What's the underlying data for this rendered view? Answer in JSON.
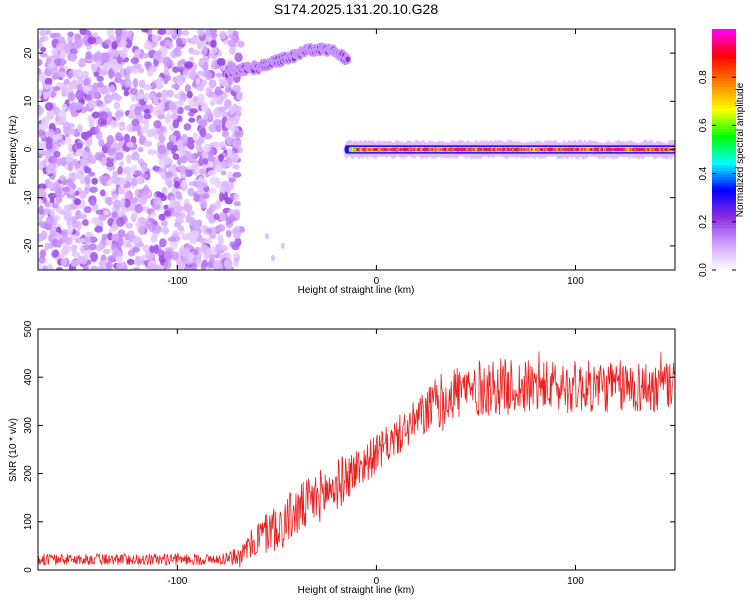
{
  "chart_data": [
    {
      "type": "heatmap",
      "title": "S174.2025.131.20.10.G28",
      "xlabel": "Height of straight line (km)",
      "ylabel": "Frequency (Hz)",
      "xlim": [
        -170,
        150
      ],
      "ylim": [
        -25,
        25
      ],
      "xticks": [
        -100,
        0,
        100
      ],
      "yticks": [
        -20,
        -10,
        0,
        10,
        20
      ],
      "colorbar": {
        "label": "Normalized spectral amplitude",
        "ticks": [
          0.0,
          0.2,
          0.4,
          0.6,
          0.8
        ],
        "range": [
          0,
          1
        ],
        "colormap": [
          "#ffffff",
          "#d0a0ff",
          "#8a2be2",
          "#0000ff",
          "#00ffff",
          "#00ff00",
          "#ffff00",
          "#ff8000",
          "#ff0000",
          "#ff00ff"
        ]
      },
      "features": [
        {
          "name": "noise",
          "x": [
            -170,
            -70
          ],
          "y": [
            -25,
            25
          ],
          "amplitude": 0.15
        },
        {
          "name": "rising-track",
          "x": [
            -75,
            -60,
            -45,
            -30,
            -20,
            -14
          ],
          "y": [
            16,
            17,
            19,
            21,
            20.5,
            18
          ],
          "amplitude": 0.35
        },
        {
          "name": "zero-line",
          "x": [
            -15,
            150
          ],
          "y": [
            0,
            0
          ],
          "amplitude": 0.95
        }
      ]
    },
    {
      "type": "line",
      "xlabel": "Height of straight line (km)",
      "ylabel": "SNR (10 * v/v)",
      "xlim": [
        -170,
        150
      ],
      "ylim": [
        0,
        500
      ],
      "xticks": [
        -100,
        0,
        100
      ],
      "yticks": [
        0,
        100,
        200,
        300,
        400,
        500
      ],
      "color": "#e82020",
      "envelope": {
        "x": [
          -170,
          -80,
          -68,
          -60,
          -50,
          -40,
          -30,
          -20,
          -10,
          0,
          10,
          20,
          30,
          40,
          60,
          80,
          100,
          120,
          150
        ],
        "y": [
          22,
          22,
          30,
          65,
          90,
          120,
          150,
          175,
          210,
          240,
          275,
          310,
          345,
          370,
          380,
          380,
          380,
          380,
          380
        ],
        "amp": [
          12,
          12,
          18,
          40,
          50,
          55,
          55,
          55,
          45,
          40,
          40,
          45,
          55,
          60,
          60,
          55,
          55,
          55,
          55
        ]
      }
    }
  ]
}
